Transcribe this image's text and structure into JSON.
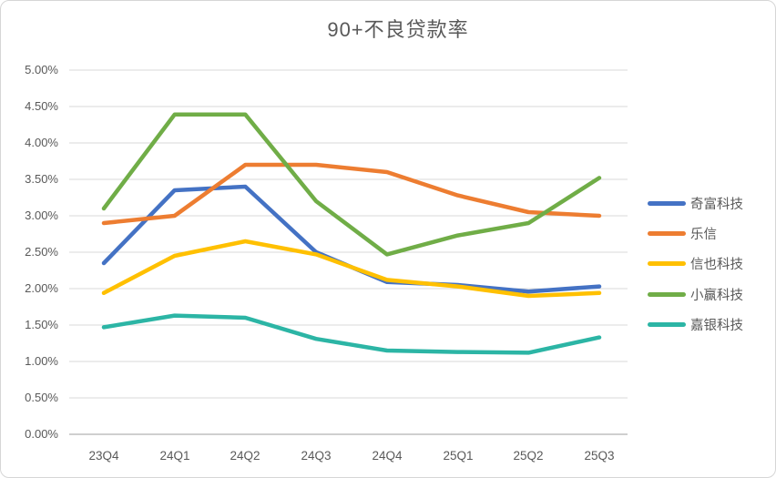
{
  "title": "90+不良贷款率",
  "colors": {
    "background": "#ffffff",
    "border": "#d6d6d6",
    "gridline": "#d9d9d9",
    "axis_line": "#bfbfbf",
    "text": "#595959"
  },
  "chart_data": {
    "type": "line",
    "title": "90+不良贷款率",
    "categories": [
      "23Q4",
      "24Q1",
      "24Q2",
      "24Q3",
      "24Q4",
      "25Q1",
      "25Q2",
      "25Q3"
    ],
    "series": [
      {
        "name": "奇富科技",
        "color": "#4472C4",
        "values": [
          2.35,
          3.35,
          3.4,
          2.5,
          2.09,
          2.05,
          1.96,
          2.03
        ]
      },
      {
        "name": "乐信",
        "color": "#ED7D31",
        "values": [
          2.9,
          3.0,
          3.7,
          3.7,
          3.6,
          3.28,
          3.05,
          3.0
        ]
      },
      {
        "name": "信也科技",
        "color": "#FFC000",
        "values": [
          1.94,
          2.45,
          2.65,
          2.47,
          2.12,
          2.03,
          1.9,
          1.94
        ]
      },
      {
        "name": "小赢科技",
        "color": "#70AD47",
        "values": [
          3.1,
          4.39,
          4.39,
          3.2,
          2.47,
          2.73,
          2.9,
          3.52
        ]
      },
      {
        "name": "嘉银科技",
        "color": "#2CB5A5",
        "values": [
          1.47,
          1.63,
          1.6,
          1.31,
          1.15,
          1.13,
          1.12,
          1.33
        ]
      }
    ],
    "y_ticks": [
      "5.00%",
      "4.50%",
      "4.00%",
      "3.50%",
      "3.00%",
      "2.50%",
      "2.00%",
      "1.50%",
      "1.00%",
      "0.50%",
      "0.00%"
    ],
    "ylim": [
      0,
      5
    ],
    "xlabel": "",
    "ylabel": "",
    "grid": true,
    "legend_position": "right"
  }
}
